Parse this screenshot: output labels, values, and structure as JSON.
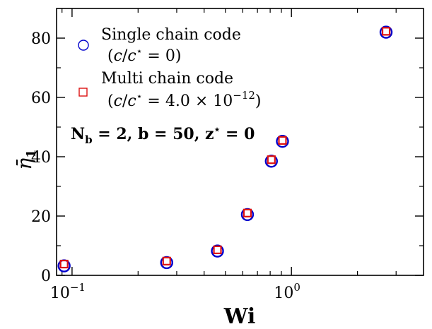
{
  "chart_data": {
    "type": "scatter",
    "xscale": "log",
    "xlim": [
      0.085,
      4.0
    ],
    "ylim": [
      0,
      90
    ],
    "x_ticks": [
      {
        "value": 0.1,
        "base": "10",
        "exponent": "−1"
      },
      {
        "value": 1.0,
        "base": "10",
        "exponent": "0"
      }
    ],
    "y_ticks": [
      0,
      20,
      40,
      60,
      80
    ],
    "xlabel": "Wi",
    "ylabel": "η̄",
    "ylabel_sub": "1",
    "annotation": "N_b = 2, b = 50, z* = 0",
    "legend_position": "top-left",
    "series": [
      {
        "name": "Single chain code",
        "name_line2": "(c/c* = 0)",
        "marker": "circle",
        "color": "#0000cc",
        "x": [
          0.092,
          0.27,
          0.46,
          0.63,
          0.81,
          0.91,
          2.7
        ],
        "y": [
          3.2,
          4.3,
          8.2,
          20.5,
          38.5,
          45.2,
          82.0
        ]
      },
      {
        "name": "Multi chain code",
        "name_line2": "(c/c* = 4.0 × 10^−12)",
        "marker": "square",
        "color": "#dd1111",
        "x": [
          0.092,
          0.27,
          0.46,
          0.63,
          0.81,
          0.91,
          2.7
        ],
        "y": [
          3.8,
          4.8,
          8.6,
          21.0,
          39.0,
          45.5,
          82.3
        ]
      }
    ]
  }
}
